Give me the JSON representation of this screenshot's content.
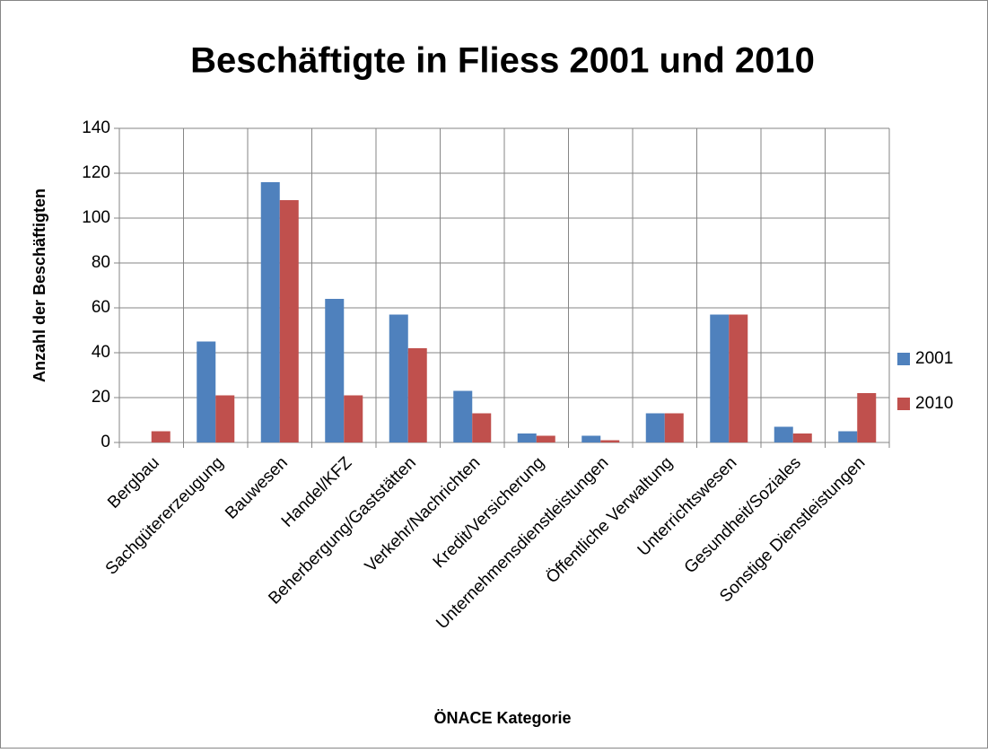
{
  "chart_data": {
    "type": "bar",
    "title": "Beschäftigte in Fliess 2001 und 2010",
    "x_label": "ÖNACE Kategorie",
    "y_label": "Anzahl der Beschäftigten",
    "categories": [
      "Bergbau",
      "Sachgütererzeugung",
      "Bauwesen",
      "Handel/KFZ",
      "Beherbergung/Gaststätten",
      "Verkehr/Nachrichten",
      "Kredit/Versicherung",
      "Unternehmensdienstleistungen",
      "Öffentliche Verwaltung",
      "Unterrichtswesen",
      "Gesundheit/Soziales",
      "Sonstige Dienstleistungen"
    ],
    "series": [
      {
        "name": "2001",
        "color": "#4f81bd",
        "values": [
          0,
          45,
          116,
          64,
          57,
          23,
          4,
          3,
          13,
          57,
          7,
          5
        ]
      },
      {
        "name": "2010",
        "color": "#c0504d",
        "values": [
          5,
          21,
          108,
          21,
          42,
          13,
          3,
          1,
          13,
          57,
          4,
          22
        ]
      }
    ],
    "ylim": [
      0,
      140
    ],
    "yticks": [
      0,
      20,
      40,
      60,
      80,
      100,
      120,
      140
    ],
    "grid": true,
    "legend": "right"
  }
}
